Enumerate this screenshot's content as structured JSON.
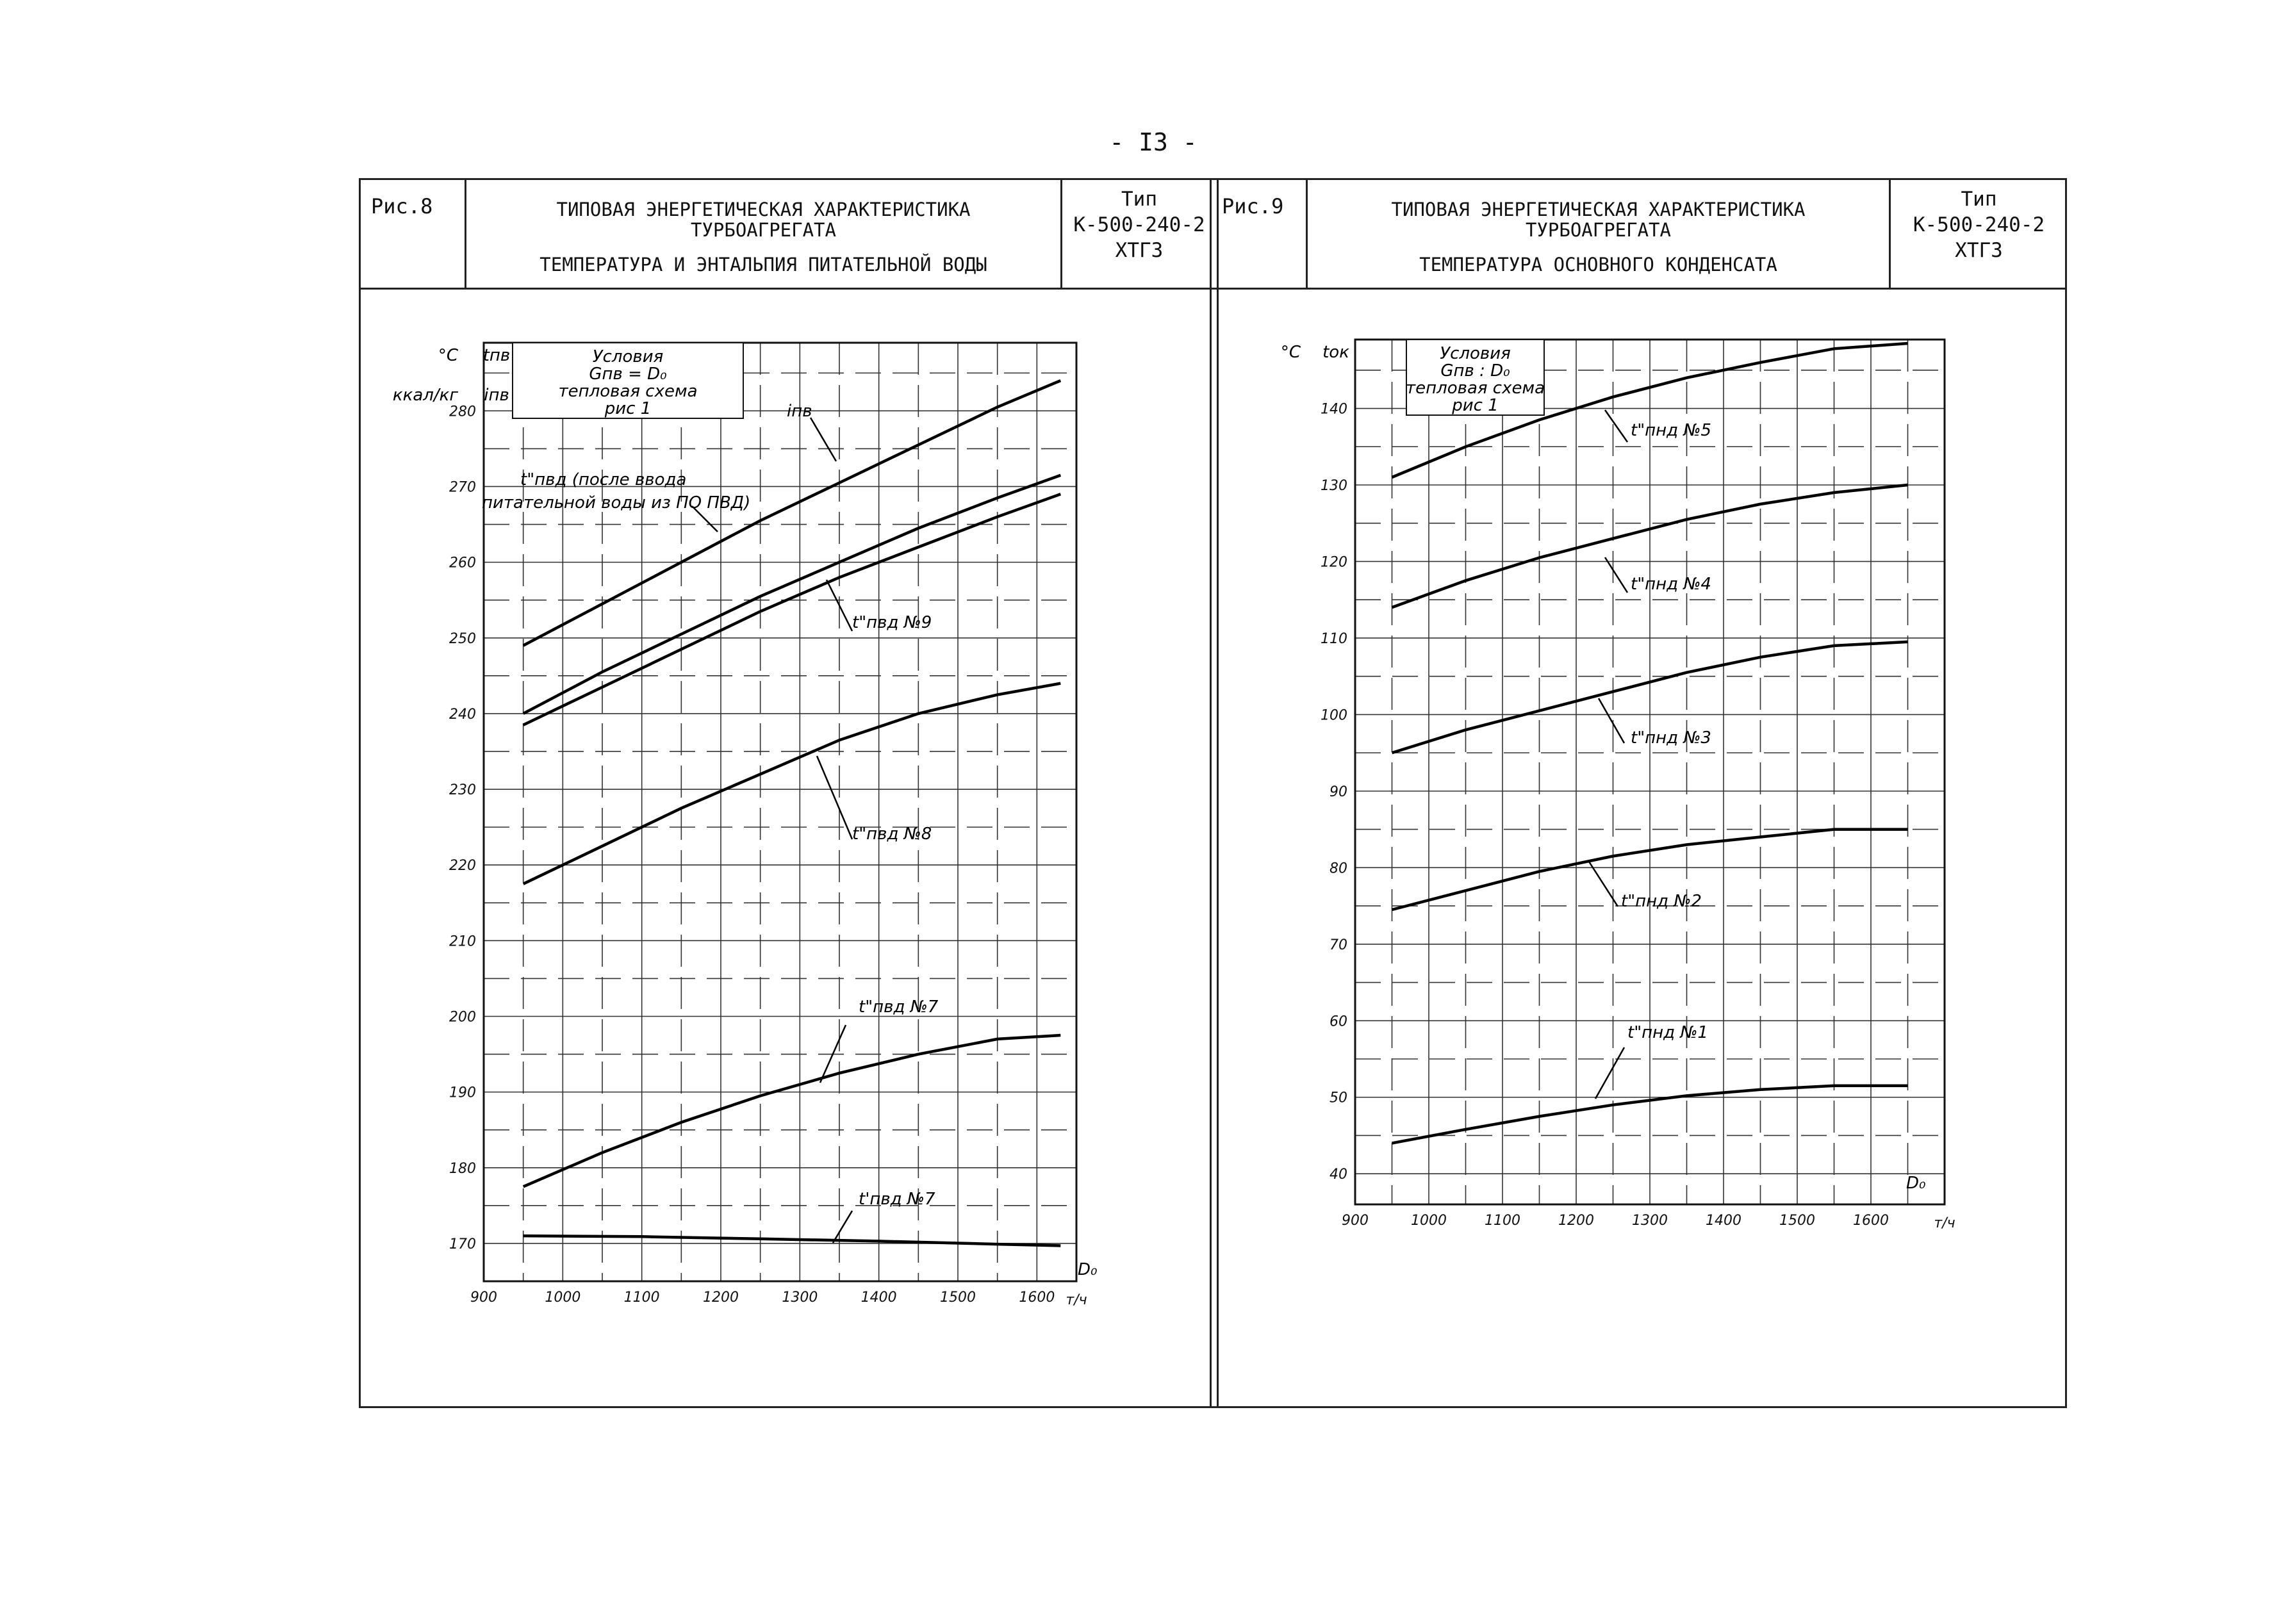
{
  "page_number": "- I3 -",
  "panels": [
    {
      "fig_label": "Рис.8",
      "title_line1": "ТИПОВАЯ ЭНЕРГЕТИЧЕСКАЯ ХАРАКТЕРИСТИКА",
      "title_line2": "ТУРБОАГРЕГАТА",
      "title_line3": "ТЕМПЕРАТУРА И ЭНТАЛЬПИЯ ПИТАТЕЛЬНОЙ ВОДЫ",
      "type_label": "Тип",
      "type_model": "К-500-240-2",
      "type_maker": "ХТГЗ"
    },
    {
      "fig_label": "Рис.9",
      "title_line1": "ТИПОВАЯ ЭНЕРГЕТИЧЕСКАЯ ХАРАКТЕРИСТИКА",
      "title_line2": "ТУРБОАГРЕГАТА",
      "title_line3": "ТЕМПЕРАТУРА ОСНОВНОГО КОНДЕНСАТА",
      "type_label": "Тип",
      "type_model": "К-500-240-2",
      "type_maker": "ХТГЗ"
    }
  ],
  "chart_data": [
    {
      "type": "line",
      "title": "ТЕМПЕРАТУРА И ЭНТАЛЬПИЯ ПИТАТЕЛЬНОЙ ВОДЫ",
      "y_unit": "°C",
      "y_unit2": "ккал/кг",
      "y_symbol": "tпв",
      "y_symbol2": "iпв",
      "x_label": "D₀",
      "x_unit": "т/ч",
      "xlim": [
        900,
        1650
      ],
      "ylim": [
        165,
        289
      ],
      "x_ticks": [
        900,
        1000,
        1100,
        1200,
        1300,
        1400,
        1500,
        1600
      ],
      "x_tick_labels": [
        "900",
        "1000",
        "1100",
        "1200",
        "1300",
        "1400",
        "1500",
        "1600"
      ],
      "y_ticks": [
        170,
        180,
        190,
        200,
        210,
        220,
        230,
        240,
        250,
        260,
        270,
        280
      ],
      "conditions": [
        "Условия",
        "Gпв = D₀",
        "тепловая схема",
        "рис 1"
      ],
      "series": [
        {
          "name": "iпв",
          "x": [
            950,
            1050,
            1150,
            1250,
            1350,
            1450,
            1550,
            1630
          ],
          "y": [
            249,
            254.5,
            260,
            265.5,
            270.5,
            275.5,
            280.5,
            284
          ]
        },
        {
          "name": "t\"пвд (после ввода питательной воды из ПО ПВД)",
          "x": [
            950,
            1050,
            1150,
            1250,
            1350,
            1450,
            1550,
            1630
          ],
          "y": [
            240,
            245.5,
            250.5,
            255.5,
            260,
            264.5,
            268.5,
            271.5
          ]
        },
        {
          "name": "t\"пвд №9",
          "x": [
            950,
            1050,
            1150,
            1250,
            1350,
            1450,
            1550,
            1630
          ],
          "y": [
            238.5,
            243.5,
            248.5,
            253.5,
            258,
            262,
            266,
            269
          ]
        },
        {
          "name": "t\"пвд №8",
          "x": [
            950,
            1050,
            1150,
            1250,
            1350,
            1450,
            1550,
            1630
          ],
          "y": [
            217.5,
            222.5,
            227.5,
            232,
            236.5,
            240,
            242.5,
            244
          ]
        },
        {
          "name": "t\"пвд №7",
          "x": [
            950,
            1050,
            1150,
            1250,
            1350,
            1450,
            1550,
            1630
          ],
          "y": [
            177.5,
            182,
            186,
            189.5,
            192.5,
            195,
            197,
            197.5
          ]
        },
        {
          "name": "t'пвд №7",
          "x": [
            950,
            1100,
            1250,
            1400,
            1550,
            1630
          ],
          "y": [
            171,
            170.9,
            170.6,
            170.3,
            169.9,
            169.7
          ]
        }
      ]
    },
    {
      "type": "line",
      "title": "ТЕМПЕРАТУРА ОСНОВНОГО КОНДЕНСАТА",
      "y_unit": "°C",
      "y_symbol": "tок",
      "x_label": "D₀",
      "x_unit": "т/ч",
      "xlim": [
        900,
        1700
      ],
      "ylim": [
        36,
        149
      ],
      "x_ticks": [
        900,
        1000,
        1100,
        1200,
        1300,
        1400,
        1500,
        1600
      ],
      "x_tick_labels": [
        "900",
        "1000",
        "1100",
        "1200",
        "1300",
        "1400",
        "1500",
        "1600"
      ],
      "y_ticks": [
        40,
        50,
        60,
        70,
        80,
        90,
        100,
        110,
        120,
        130,
        140
      ],
      "conditions": [
        "Условия",
        "Gпв : D₀",
        "тепловая схема",
        "рис 1"
      ],
      "series": [
        {
          "name": "t\"пнд №5",
          "x": [
            950,
            1050,
            1150,
            1250,
            1350,
            1450,
            1550,
            1650
          ],
          "y": [
            131,
            135,
            138.5,
            141.5,
            144,
            146,
            147.8,
            148.5
          ]
        },
        {
          "name": "t\"пнд №4",
          "x": [
            950,
            1050,
            1150,
            1250,
            1350,
            1450,
            1550,
            1650
          ],
          "y": [
            114,
            117.5,
            120.5,
            123,
            125.5,
            127.5,
            129,
            130
          ]
        },
        {
          "name": "t\"пнд №3",
          "x": [
            950,
            1050,
            1150,
            1250,
            1350,
            1450,
            1550,
            1650
          ],
          "y": [
            95,
            98,
            100.5,
            103,
            105.5,
            107.5,
            109,
            109.5
          ]
        },
        {
          "name": "t\"пнд №2",
          "x": [
            950,
            1050,
            1150,
            1250,
            1350,
            1450,
            1550,
            1650
          ],
          "y": [
            74.5,
            77,
            79.5,
            81.5,
            83,
            84,
            85,
            85
          ]
        },
        {
          "name": "t\"пнд №1",
          "x": [
            950,
            1050,
            1150,
            1250,
            1350,
            1450,
            1550,
            1650
          ],
          "y": [
            44,
            45.8,
            47.5,
            49,
            50.2,
            51,
            51.5,
            51.5
          ]
        }
      ]
    }
  ]
}
